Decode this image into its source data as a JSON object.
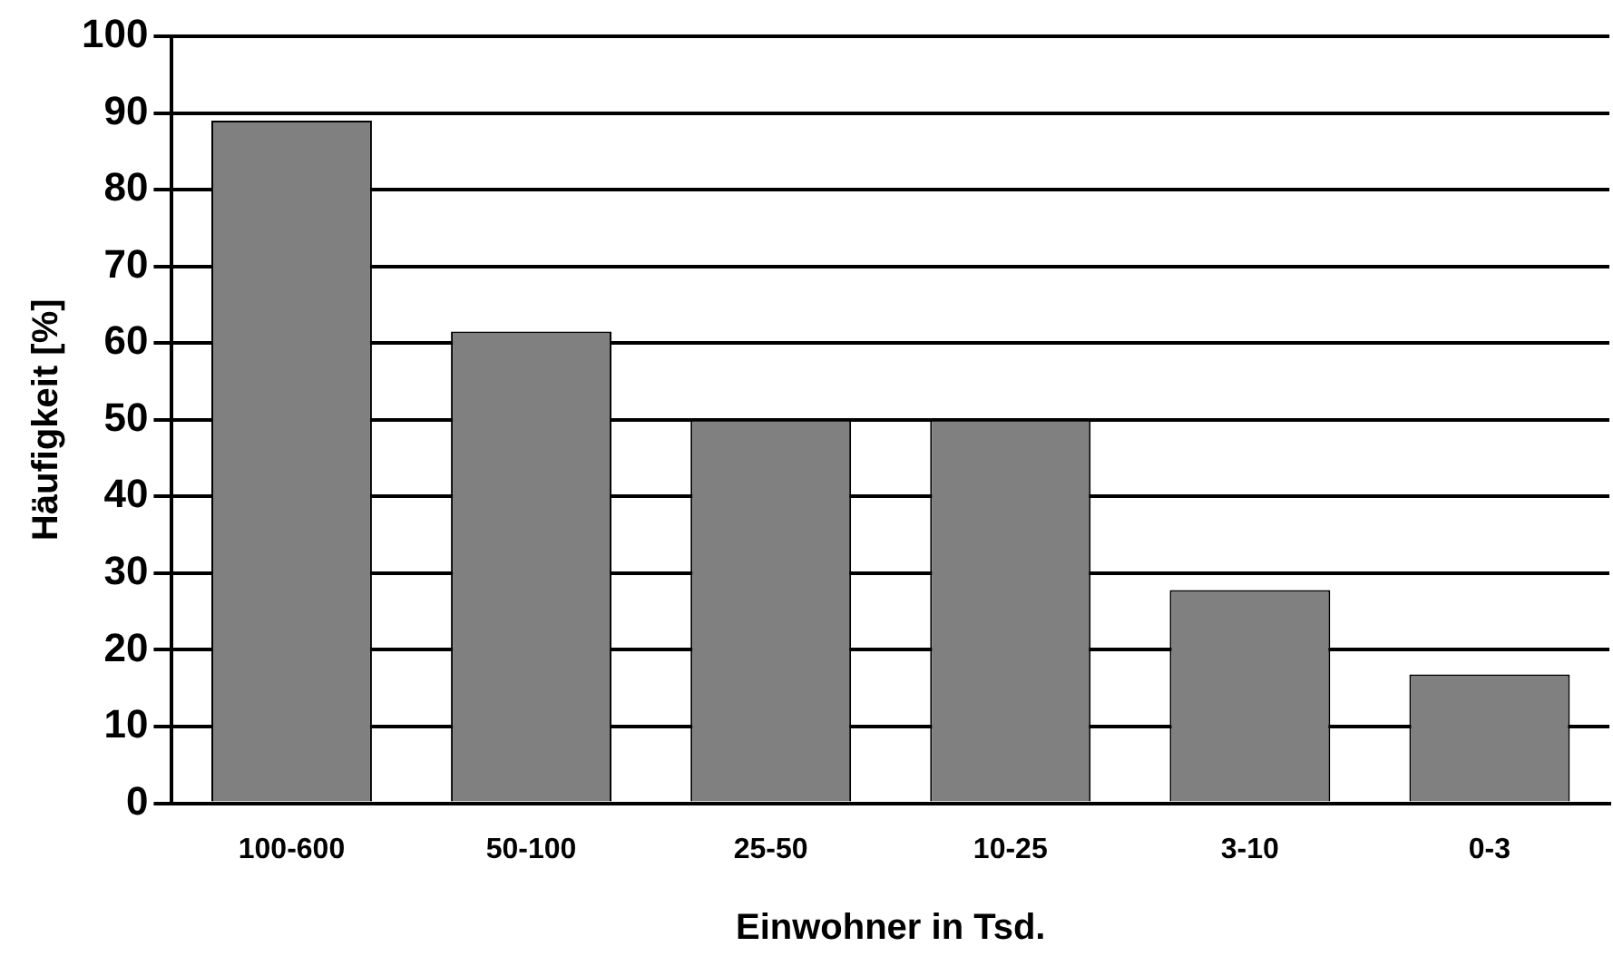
{
  "chart_data": {
    "type": "bar",
    "xlabel": "Einwohner in Tsd.",
    "ylabel": "Häufigkeit [%]",
    "categories": [
      "100-600",
      "50-100",
      "25-50",
      "10-25",
      "3-10",
      "0-3"
    ],
    "values": [
      89,
      61.5,
      50,
      50,
      27.8,
      16.8
    ],
    "color": "#808080",
    "ylim": [
      0,
      100
    ],
    "yticks": [
      0,
      10,
      20,
      30,
      40,
      50,
      60,
      70,
      80,
      90,
      100
    ],
    "grid": "y",
    "legend": false
  }
}
